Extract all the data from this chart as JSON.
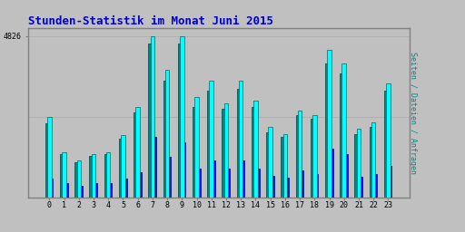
{
  "title": "Stunden-Statistik im Monat Juni 2015",
  "title_color": "#0000cc",
  "ylabel": "Seiten / Dateien / Anfragen",
  "ylabel_color": "#008888",
  "background_color": "#c0c0c0",
  "plot_bg_color": "#c0c0c0",
  "ytick_label": "4826",
  "categories": [
    0,
    1,
    2,
    3,
    4,
    5,
    6,
    7,
    8,
    9,
    10,
    11,
    12,
    13,
    14,
    15,
    16,
    17,
    18,
    19,
    20,
    21,
    22,
    23
  ],
  "seiten": [
    2400,
    1350,
    1100,
    1280,
    1350,
    1850,
    2700,
    4826,
    3800,
    4826,
    3000,
    3500,
    2800,
    3500,
    2900,
    2100,
    1900,
    2600,
    2450,
    4400,
    4000,
    2050,
    2250,
    3400
  ],
  "dateien": [
    2200,
    1300,
    1050,
    1230,
    1300,
    1750,
    2550,
    4600,
    3500,
    4600,
    2700,
    3200,
    2650,
    3250,
    2700,
    1950,
    1800,
    2450,
    2350,
    4000,
    3700,
    1900,
    2100,
    3200
  ],
  "anfragen": [
    550,
    420,
    350,
    420,
    430,
    550,
    750,
    1800,
    1200,
    1650,
    850,
    1100,
    850,
    1100,
    850,
    650,
    580,
    800,
    700,
    1450,
    1300,
    620,
    700,
    950
  ],
  "color_seiten": "#00ffff",
  "color_dateien": "#008888",
  "color_anfragen": "#0000ff",
  "grid_color": "#b0b0b0",
  "border_color": "#808080",
  "font_family": "monospace",
  "bar_width": 0.28,
  "figsize": [
    5.12,
    2.56
  ],
  "dpi": 100
}
